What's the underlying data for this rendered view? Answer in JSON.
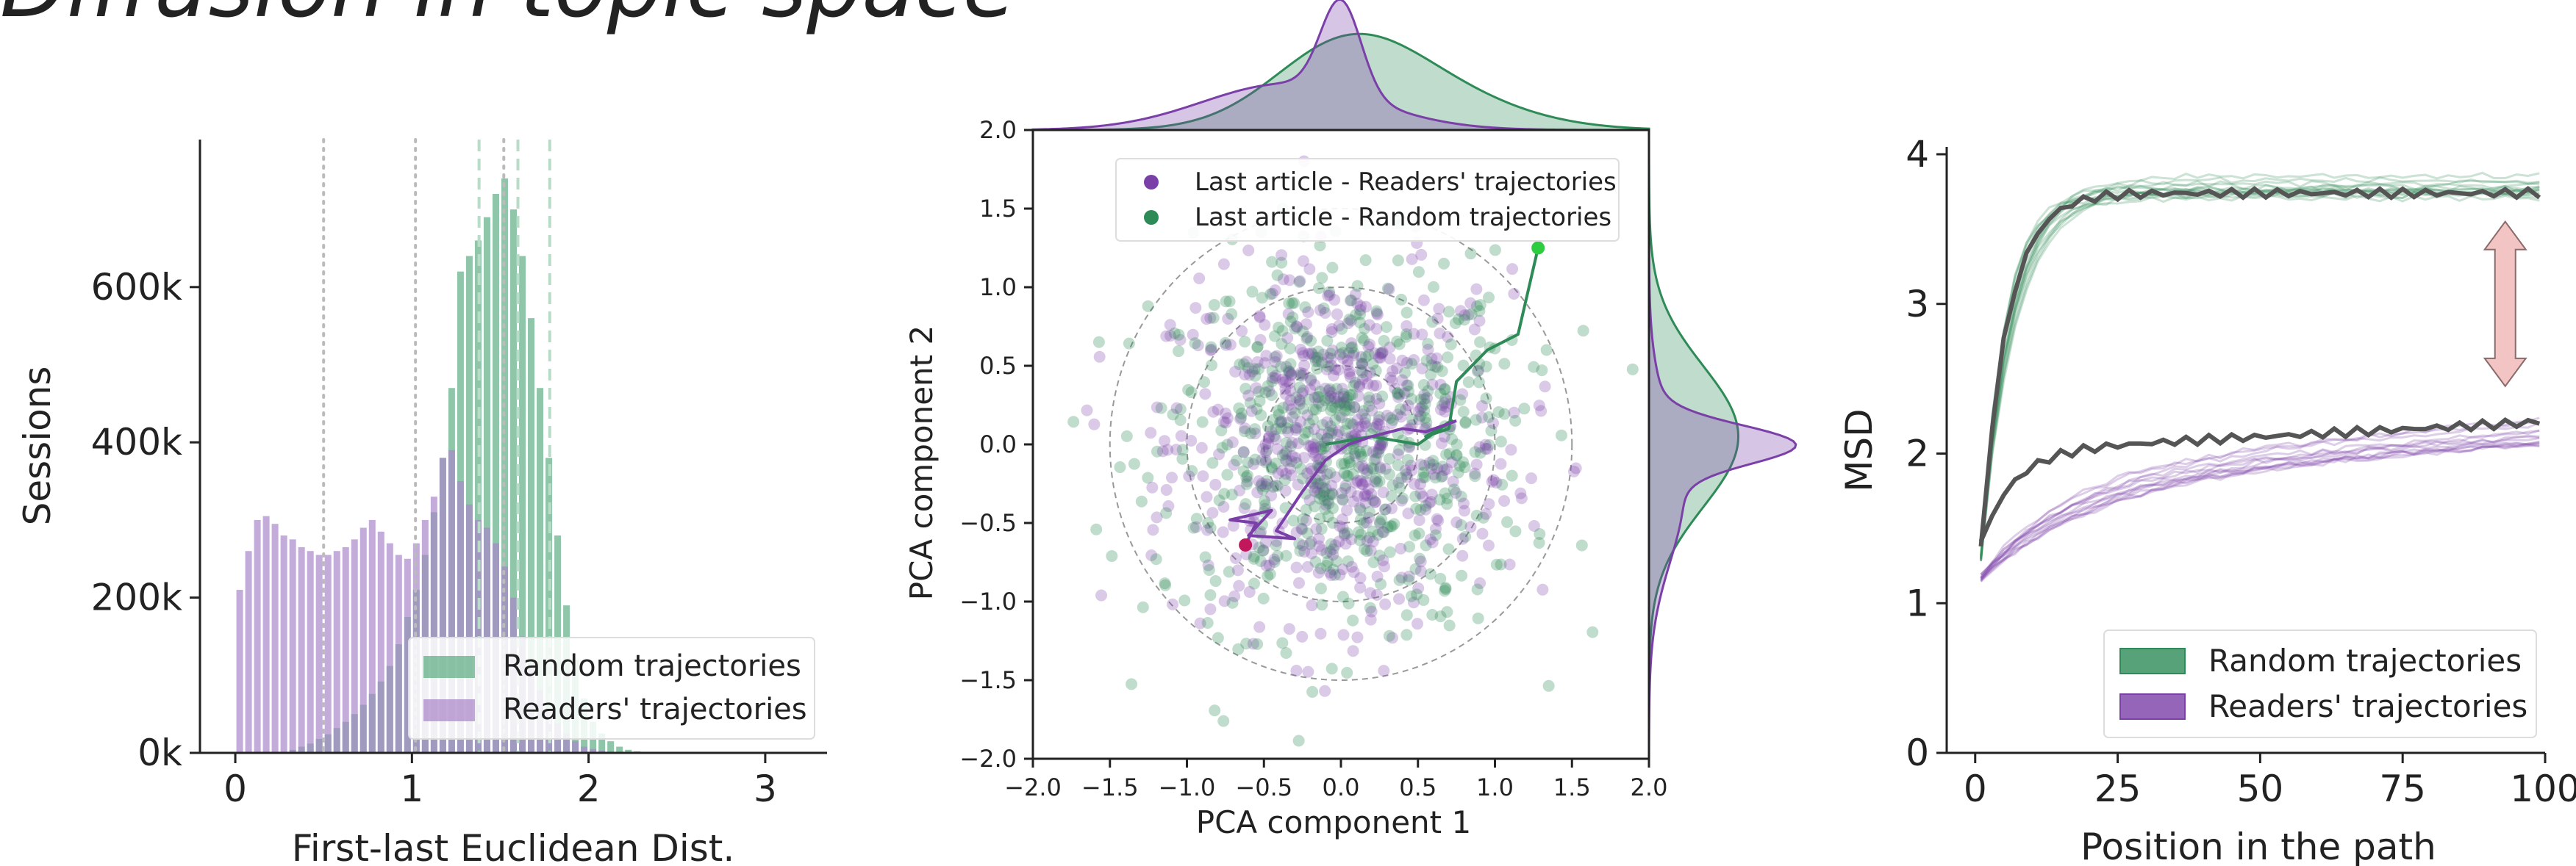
{
  "figure": {
    "title": "Diffusion in topic space"
  },
  "colors": {
    "random": "#2e8b57",
    "random_fill": "#5aab80",
    "readers": "#7b3fa8",
    "readers_fill": "#a884c9",
    "dark_line": "#555555",
    "arrow_fill": "#f3c4c4",
    "arrow_edge": "#8a6a6a",
    "start_point": "#c2185b",
    "end_point": "#2ecc40"
  },
  "chart_data": [
    {
      "id": "histogram",
      "type": "bar",
      "xlabel": "First-last Euclidean Dist.",
      "ylabel": "Sessions",
      "xlim": [
        -0.2,
        3.35
      ],
      "ylim": [
        0,
        790000
      ],
      "xticks": [
        0,
        1,
        2,
        3
      ],
      "xtick_labels": [
        "0",
        "1",
        "2",
        "3"
      ],
      "yticks": [
        0,
        200000,
        400000,
        600000
      ],
      "ytick_labels": [
        "0k",
        "200k",
        "400k",
        "600k"
      ],
      "bin_width": 0.05,
      "bin_start": 0.0,
      "legend_position": "lower right",
      "series": [
        {
          "name": "Random trajectories",
          "values": [
            0,
            0,
            0,
            0,
            0,
            0,
            4000,
            8000,
            12000,
            18000,
            24000,
            32000,
            40000,
            50000,
            62000,
            76000,
            92000,
            112000,
            140000,
            175000,
            210000,
            255000,
            310000,
            380000,
            470000,
            620000,
            640000,
            660000,
            690000,
            720000,
            740000,
            700000,
            640000,
            560000,
            470000,
            380000,
            280000,
            190000,
            120000,
            70000,
            40000,
            25000,
            15000,
            8000,
            4000,
            2000,
            1000,
            0,
            0,
            0
          ]
        },
        {
          "name": "Readers' trajectories",
          "values": [
            210000,
            260000,
            300000,
            305000,
            295000,
            280000,
            275000,
            265000,
            260000,
            255000,
            255000,
            260000,
            265000,
            275000,
            290000,
            300000,
            285000,
            270000,
            255000,
            250000,
            270000,
            300000,
            330000,
            380000,
            390000,
            350000,
            320000,
            300000,
            290000,
            270000,
            240000,
            200000,
            150000,
            110000,
            80000,
            55000,
            38000,
            25000,
            15000,
            8000,
            5000,
            3000,
            1500,
            800,
            400,
            200,
            0,
            0,
            0,
            0
          ]
        }
      ],
      "vlines_dotted": [
        0.5,
        1.02,
        1.52
      ],
      "vlines_dashed": [
        1.38,
        1.6,
        1.78
      ]
    },
    {
      "id": "scatter",
      "type": "scatter",
      "xlabel": "PCA component 1",
      "ylabel": "PCA component 2",
      "xlim": [
        -2.0,
        2.0
      ],
      "ylim": [
        -2.0,
        2.0
      ],
      "xticks": [
        -2.0,
        -1.5,
        -1.0,
        -0.5,
        0.0,
        0.5,
        1.0,
        1.5,
        2.0
      ],
      "xtick_labels": [
        "−2.0",
        "−1.5",
        "−1.0",
        "−0.5",
        "0.0",
        "0.5",
        "1.0",
        "1.5",
        "2.0"
      ],
      "yticks": [
        -2.0,
        -1.5,
        -1.0,
        -0.5,
        0.0,
        0.5,
        1.0,
        1.5,
        2.0
      ],
      "ytick_labels": [
        "−2.0",
        "−1.5",
        "−1.0",
        "−0.5",
        "0.0",
        "0.5",
        "1.0",
        "1.5",
        "2.0"
      ],
      "legend_position": "upper right",
      "legend": [
        "Last article - Readers' trajectories",
        "Last article - Random trajectories"
      ],
      "circles": [
        0.5,
        1.0,
        1.5
      ],
      "n_points_per_series": 600,
      "point_spread": {
        "readers": 0.55,
        "random": 0.6
      },
      "readers_path": [
        [
          -0.62,
          -0.64
        ],
        [
          -0.55,
          -0.5
        ],
        [
          -0.72,
          -0.48
        ],
        [
          -0.45,
          -0.42
        ],
        [
          -0.6,
          -0.58
        ],
        [
          -0.3,
          -0.6
        ],
        [
          -0.42,
          -0.55
        ],
        [
          -0.25,
          -0.3
        ],
        [
          -0.1,
          -0.1
        ],
        [
          0.05,
          0.0
        ],
        [
          0.2,
          0.05
        ],
        [
          0.4,
          0.1
        ],
        [
          0.55,
          0.08
        ],
        [
          0.75,
          0.15
        ]
      ],
      "random_path": [
        [
          -0.1,
          0.0
        ],
        [
          0.2,
          0.05
        ],
        [
          0.5,
          0.0
        ],
        [
          0.72,
          0.15
        ],
        [
          0.55,
          0.05
        ],
        [
          0.7,
          0.1
        ],
        [
          0.75,
          0.4
        ],
        [
          0.95,
          0.6
        ],
        [
          1.15,
          0.7
        ],
        [
          1.28,
          1.25
        ]
      ]
    },
    {
      "id": "msd",
      "type": "line",
      "xlabel": "Position in the path",
      "ylabel": "MSD",
      "xlim": [
        -5,
        100
      ],
      "ylim": [
        0,
        4
      ],
      "xticks": [
        0,
        25,
        50,
        75,
        100
      ],
      "xtick_labels": [
        "0",
        "25",
        "50",
        "75",
        "100"
      ],
      "yticks": [
        0,
        1,
        2,
        3,
        4
      ],
      "ytick_labels": [
        "0",
        "1",
        "2",
        "3",
        "4"
      ],
      "legend_position": "lower right",
      "series": [
        {
          "name": "Random trajectories",
          "plateau": 3.78,
          "start": 1.3,
          "rate": 0.2
        },
        {
          "name": "Readers' trajectories",
          "plateau": 2.15,
          "start": 1.0,
          "rate": 0.06
        }
      ],
      "reference_lines": [
        {
          "plateau": 3.74,
          "start": 1.35
        },
        {
          "plateau": 2.12,
          "start": 1.4
        }
      ],
      "arrow": {
        "x": 93,
        "y_top": 3.55,
        "y_bottom": 2.45
      }
    }
  ]
}
